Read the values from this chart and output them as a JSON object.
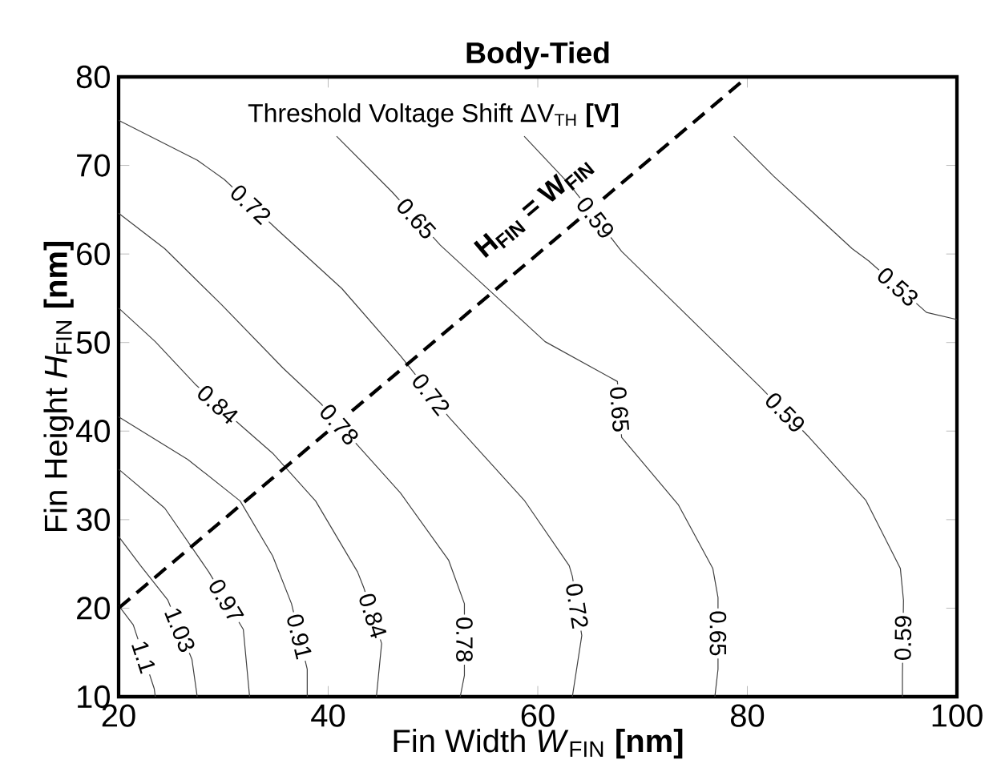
{
  "chart_data": {
    "type": "line",
    "title": "Body-Tied",
    "xlabel": "Fin Width *W*$_{FIN}$ **[nm]**",
    "ylabel": "Fin Height *H*$_{FIN}$ **[nm]**",
    "xlim": [
      20,
      100
    ],
    "xticks": [
      20,
      40,
      60,
      80,
      100
    ],
    "ylim": [
      10,
      80
    ],
    "yticks": [
      10,
      20,
      30,
      40,
      50,
      60,
      70,
      80
    ],
    "series": [
      {
        "color": "#404040",
        "x": [
          20,
          21.4,
          23.4,
          23.5
        ],
        "values": [
          20.3,
          18.1,
          10.9,
          10
        ]
      },
      {
        "color": "#404040",
        "x": [
          20,
          22.1,
          24.7,
          27.0,
          27.5
        ],
        "values": [
          28.1,
          24.8,
          20.9,
          14.2,
          10
        ]
      },
      {
        "color": "#404040",
        "x": [
          20,
          24.4,
          28.6,
          31.9,
          32.5
        ],
        "values": [
          35.7,
          31.3,
          24.1,
          17.6,
          10
        ]
      },
      {
        "color": "#404040",
        "x": [
          20,
          26.6,
          31.6,
          34.7,
          36.5,
          38.0,
          38.0
        ],
        "values": [
          41.6,
          36.8,
          32.1,
          25.9,
          20.5,
          13.1,
          10
        ]
      },
      {
        "color": "#404040",
        "x": [
          20,
          23.5,
          27.3,
          31.6,
          34.7,
          38.8,
          42.8,
          43.4,
          45.1,
          44.6
        ],
        "values": [
          53.9,
          50.1,
          45.3,
          40.7,
          37.5,
          32.1,
          24.1,
          22.3,
          16.0,
          10
        ]
      },
      {
        "color": "#404040",
        "x": [
          20,
          24.4,
          29.8,
          35.7,
          39.3,
          42.8,
          46.9,
          51.5,
          53.0,
          53.0,
          52.6
        ],
        "values": [
          64.6,
          60.6,
          54.3,
          47.1,
          43.1,
          38.4,
          33.0,
          25.4,
          20.5,
          12.4,
          10
        ]
      },
      {
        "color": "#404040",
        "x": [
          20,
          27.5,
          30.1,
          35.1,
          41.3,
          46.9,
          48.1,
          51.5,
          58.7,
          63.0,
          63.3,
          64.2,
          63.3
        ],
        "values": [
          75.1,
          70.6,
          68.4,
          62.8,
          56.1,
          48.5,
          46.7,
          41.6,
          32.2,
          24.8,
          23.6,
          16.9,
          10
        ]
      },
      {
        "color": "#404040",
        "x": [
          40.8,
          46.1,
          50.7,
          60.7,
          67.6,
          68.0,
          73.4,
          76.7,
          77.2,
          77.2,
          76.9
        ],
        "values": [
          73.3,
          67.0,
          61.0,
          50.1,
          45.6,
          39.3,
          31.7,
          24.5,
          21.2,
          13.1,
          10
        ]
      },
      {
        "color": "#404040",
        "x": [
          58.7,
          63.0,
          68.0,
          81.3,
          85.9,
          91.3,
          94.6,
          94.9,
          94.8,
          94.8
        ],
        "values": [
          73.3,
          67.9,
          60.3,
          44.9,
          39.3,
          32.2,
          24.5,
          20.9,
          12.4,
          10
        ]
      },
      {
        "color": "#404040",
        "x": [
          78.7,
          82.5,
          90.0,
          91.6,
          97.1,
          100
        ],
        "values": [
          73.3,
          68.8,
          60.6,
          59.2,
          53.4,
          52.6
        ]
      },
      {
        "color": "#000000",
        "line_style": "dashed",
        "name": "H$_{FIN}$ = W$_{FIN}$",
        "x": [
          20,
          80
        ],
        "values": [
          20,
          80
        ]
      }
    ],
    "annotations": [
      "Threshold Voltage Shift ΔV$_{TH}$ **[V]**",
      {
        "text": "1.1",
        "x": 22.4,
        "y": 14.5
      },
      {
        "text": "1.03",
        "x": 25.85,
        "y": 17.55
      },
      {
        "text": "0.97",
        "x": 30.25,
        "y": 20.85
      },
      {
        "text": "0.91",
        "x": 37.25,
        "y": 16.8
      },
      {
        "text": "0.84",
        "x": 29.45,
        "y": 43.0
      },
      {
        "text": "0.84",
        "x": 44.25,
        "y": 19.15
      },
      {
        "text": "0.78",
        "x": 41.05,
        "y": 40.75
      },
      {
        "text": "0.78",
        "x": 53.0,
        "y": 16.45
      },
      {
        "text": "0.72",
        "x": 32.6,
        "y": 65.6
      },
      {
        "text": "0.72",
        "x": 49.8,
        "y": 44.15
      },
      {
        "text": "0.72",
        "x": 63.75,
        "y": 20.25
      },
      {
        "text": "0.65",
        "x": 48.4,
        "y": 64.0
      },
      {
        "text": "0.65",
        "x": 67.8,
        "y": 42.45
      },
      {
        "text": "0.65",
        "x": 77.2,
        "y": 17.15
      },
      {
        "text": "0.59",
        "x": 65.5,
        "y": 64.1
      },
      {
        "text": "0.59",
        "x": 83.6,
        "y": 42.1
      },
      {
        "text": "0.59",
        "x": 94.85,
        "y": 16.65
      },
      {
        "text": "0.53",
        "x": 94.35,
        "y": 56.3
      }
    ]
  }
}
